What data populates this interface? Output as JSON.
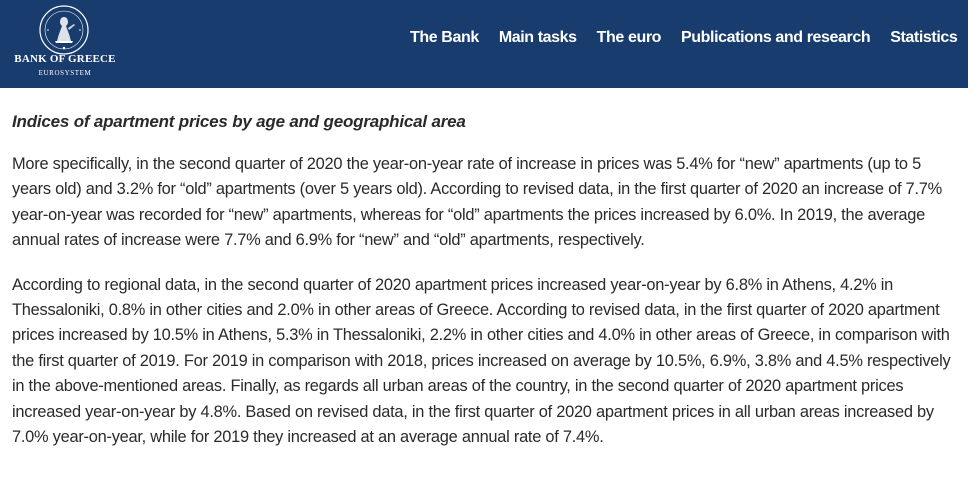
{
  "header": {
    "logo": {
      "title": "BANK OF GREECE",
      "subtitle": "EUROSYSTEM",
      "icon": "bank-seal-icon"
    },
    "nav": [
      {
        "label": "The Bank"
      },
      {
        "label": "Main tasks"
      },
      {
        "label": "The euro"
      },
      {
        "label": "Publications and research"
      },
      {
        "label": "Statistics"
      }
    ]
  },
  "article": {
    "section_title": "Indices of apartment prices by age and geographical area",
    "paragraphs": [
      "More specifically, in the second quarter of 2020 the year-on-year rate of increase in prices was 5.4% for “new” apartments (up to 5 years old) and 3.2% for “old” apartments (over 5 years old). According to revised data, in the first quarter of 2020 an increase of 7.7% year-on-year was recorded for “new” apartments, whereas for “old” apartments the prices increased by 6.0%. In 2019, the average annual rates of increase were 7.7% and 6.9% for “new” and “old” apartments, respectively.",
      "According to regional data, in the second quarter of 2020 apartment prices increased year-on-year by 6.8% in Athens, 4.2% in Thessaloniki, 0.8% in other cities and 2.0% in other areas of Greece. According to revised data, in the first quarter of 2020 apartment prices increased by 10.5% in Athens, 5.3% in Thessaloniki, 2.2% in other cities and 4.0% in other areas of Greece, in comparison with the first quarter of 2019. For 2019 in comparison with 2018, prices increased on average by 10.5%, 6.9%, 3.8% and 4.5% respectively in the above-mentioned areas. Finally, as regards all urban areas of the country, in the second quarter of 2020 apartment prices increased year-on-year by 4.8%. Based on revised data, in the first quarter of 2020 apartment prices in all urban areas increased by 7.0% year-on-year, while for 2019 they increased at an average annual rate of 7.4%."
    ]
  },
  "colors": {
    "header_bg": "#183c6e",
    "nav_text": "#ffffff",
    "body_text": "#2a2a2a"
  }
}
